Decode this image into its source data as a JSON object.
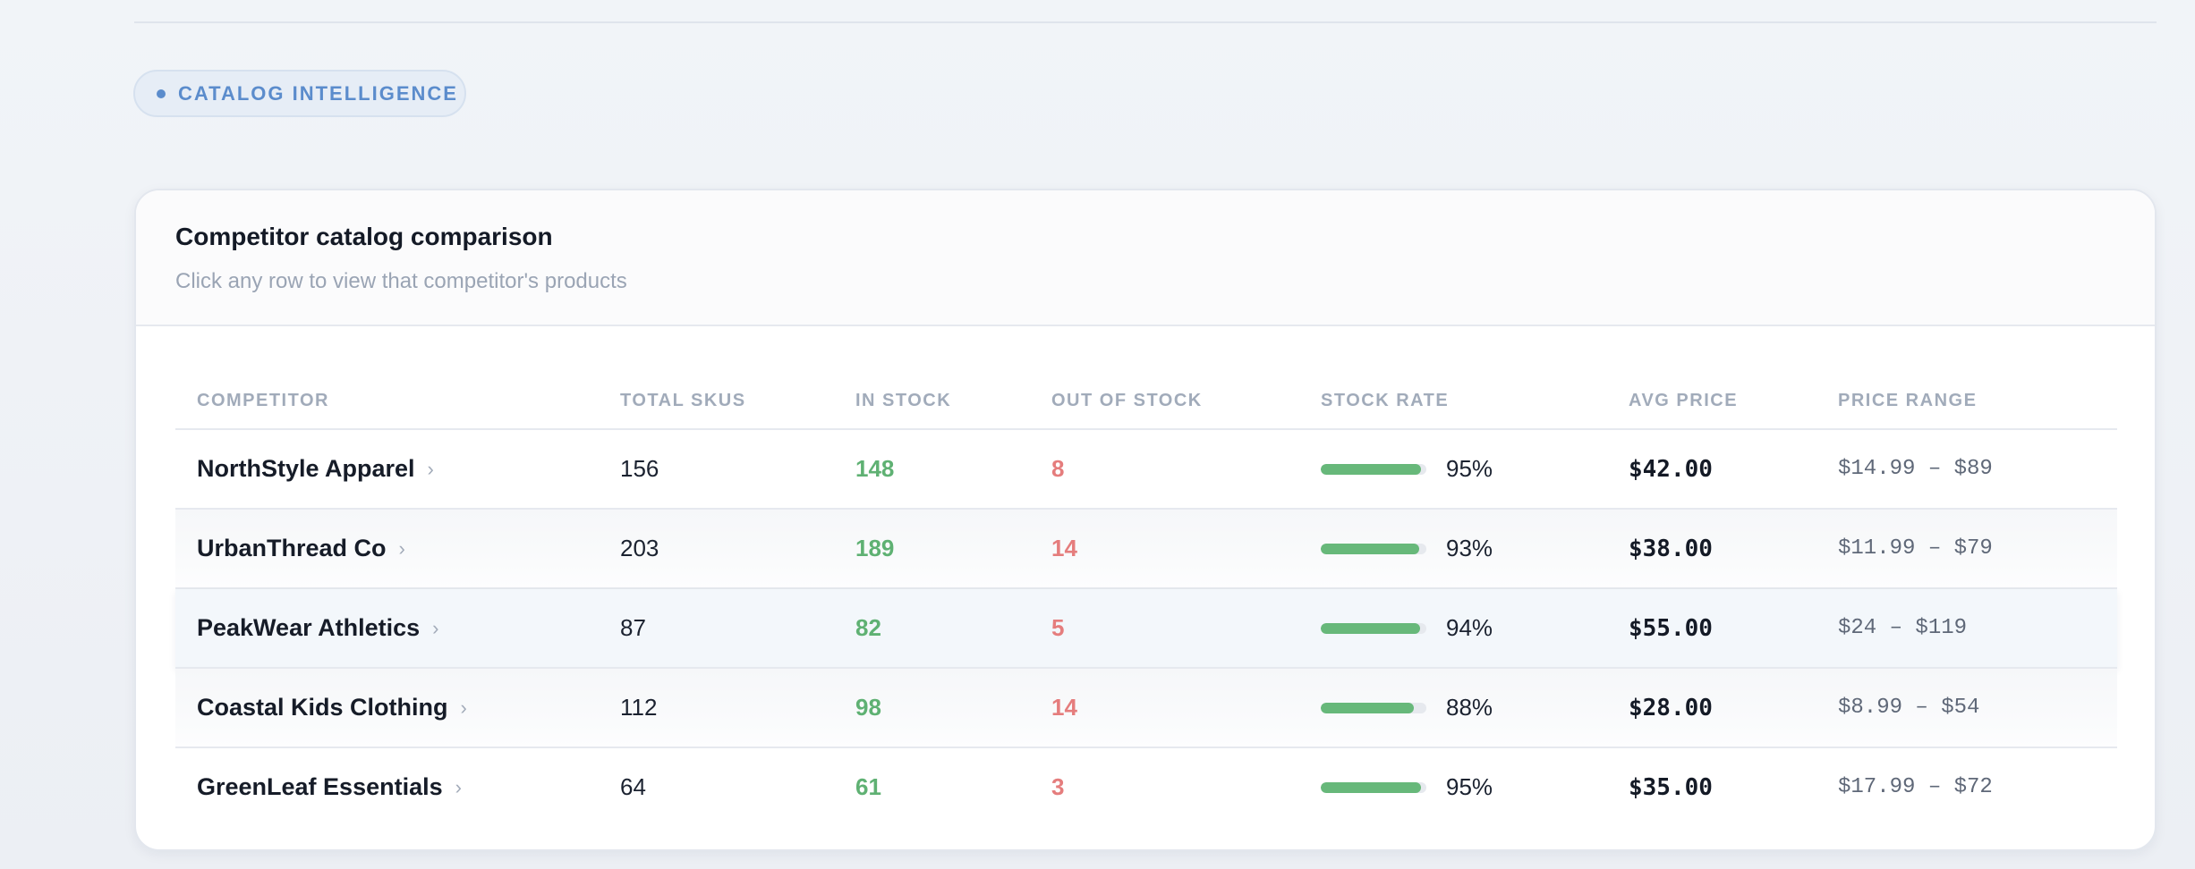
{
  "section": {
    "label": "CATALOG INTELLIGENCE"
  },
  "card": {
    "title": "Competitor catalog comparison",
    "subtitle": "Click any row to view that competitor's products"
  },
  "table": {
    "columns": [
      "COMPETITOR",
      "TOTAL SKUS",
      "IN STOCK",
      "OUT OF STOCK",
      "STOCK RATE",
      "AVG PRICE",
      "PRICE RANGE"
    ],
    "rows": [
      {
        "name": "NorthStyle Apparel",
        "total": "156",
        "in_stock": "148",
        "out_of_stock": "8",
        "stock_rate": "95%",
        "stock_rate_value": 95,
        "avg_price": "$42.00",
        "price_range": "$14.99 – $89"
      },
      {
        "name": "UrbanThread Co",
        "total": "203",
        "in_stock": "189",
        "out_of_stock": "14",
        "stock_rate": "93%",
        "stock_rate_value": 93,
        "avg_price": "$38.00",
        "price_range": "$11.99 – $79"
      },
      {
        "name": "PeakWear Athletics",
        "total": "87",
        "in_stock": "82",
        "out_of_stock": "5",
        "stock_rate": "94%",
        "stock_rate_value": 94,
        "avg_price": "$55.00",
        "price_range": "$24 – $119"
      },
      {
        "name": "Coastal Kids Clothing",
        "total": "112",
        "in_stock": "98",
        "out_of_stock": "14",
        "stock_rate": "88%",
        "stock_rate_value": 88,
        "avg_price": "$28.00",
        "price_range": "$8.99 – $54"
      },
      {
        "name": "GreenLeaf Essentials",
        "total": "64",
        "in_stock": "61",
        "out_of_stock": "3",
        "stock_rate": "95%",
        "stock_rate_value": 95,
        "avg_price": "$35.00",
        "price_range": "$17.99 – $72"
      }
    ]
  },
  "icons": {
    "row_chevron": "chevron-right-icon",
    "section_dot": "status-dot-icon"
  },
  "colors": {
    "accent": "#5b8ccc",
    "in_stock": "#5fb173",
    "out_of_stock": "#e57d7d",
    "bar_fill": "#67b87a"
  }
}
